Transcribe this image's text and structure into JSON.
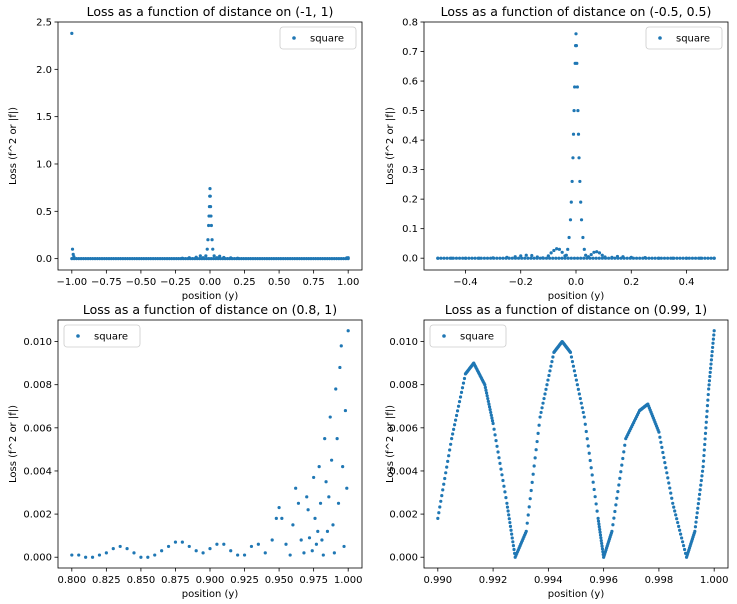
{
  "figure": {
    "background": "#ffffff"
  },
  "chart_data": [
    {
      "type": "scatter",
      "title": "Loss as a function of distance on (-1, 1)",
      "xlabel": "position (y)",
      "ylabel": "Loss (f^2 or |f|)",
      "xlim": [
        -1.1,
        1.1
      ],
      "ylim": [
        -0.12,
        2.5
      ],
      "xticks": [
        -1.0,
        -0.75,
        -0.5,
        -0.25,
        0.0,
        0.25,
        0.5,
        0.75,
        1.0
      ],
      "xtick_labels": [
        "−1.00",
        "−0.75",
        "−0.50",
        "−0.25",
        "0.00",
        "0.25",
        "0.50",
        "0.75",
        "1.00"
      ],
      "yticks": [
        0.0,
        0.5,
        1.0,
        1.5,
        2.0,
        2.5
      ],
      "ytick_labels": [
        "0.0",
        "0.5",
        "1.0",
        "1.5",
        "2.0",
        "2.5"
      ],
      "legend": {
        "position": "upper right",
        "entries": [
          "square"
        ]
      },
      "series": [
        {
          "name": "square",
          "color": "#1f77b4",
          "points": [
            [
              -1.0,
              2.38
            ],
            [
              -0.995,
              0.1
            ],
            [
              -0.99,
              0.045
            ],
            [
              -0.985,
              0.02
            ],
            [
              -0.2,
              0.005
            ],
            [
              -0.15,
              0.01
            ],
            [
              -0.1,
              0.015
            ],
            [
              -0.07,
              0.03
            ],
            [
              -0.05,
              0.01
            ],
            [
              -0.03,
              0.03
            ],
            [
              -0.02,
              0.1
            ],
            [
              -0.015,
              0.2
            ],
            [
              -0.01,
              0.35
            ],
            [
              -0.007,
              0.45
            ],
            [
              -0.004,
              0.55
            ],
            [
              -0.002,
              0.66
            ],
            [
              0.0,
              0.74
            ],
            [
              0.002,
              0.66
            ],
            [
              0.004,
              0.55
            ],
            [
              0.007,
              0.45
            ],
            [
              0.01,
              0.35
            ],
            [
              0.015,
              0.2
            ],
            [
              0.02,
              0.1
            ],
            [
              0.03,
              0.03
            ],
            [
              0.05,
              0.01
            ],
            [
              0.07,
              0.025
            ],
            [
              0.1,
              0.012
            ],
            [
              0.15,
              0.008
            ],
            [
              0.2,
              0.005
            ],
            [
              0.99,
              0.008
            ],
            [
              1.0,
              0.01
            ]
          ]
        }
      ],
      "baseline_series": {
        "from": -1.0,
        "to": 1.0,
        "count": 120,
        "value": 0.0
      }
    },
    {
      "type": "scatter",
      "title": "Loss as a function of distance on (-0.5, 0.5)",
      "xlabel": "position (y)",
      "ylabel": "Loss (f^2 or |f|)",
      "xlim": [
        -0.55,
        0.55
      ],
      "ylim": [
        -0.04,
        0.8
      ],
      "xticks": [
        -0.4,
        -0.2,
        0.0,
        0.2,
        0.4
      ],
      "xtick_labels": [
        "−0.4",
        "−0.2",
        "0.0",
        "0.2",
        "0.4"
      ],
      "yticks": [
        0.0,
        0.1,
        0.2,
        0.3,
        0.4,
        0.5,
        0.6,
        0.7,
        0.8
      ],
      "ytick_labels": [
        "0.0",
        "0.1",
        "0.2",
        "0.3",
        "0.4",
        "0.5",
        "0.6",
        "0.7",
        "0.8"
      ],
      "legend": {
        "position": "upper right",
        "entries": [
          "square"
        ]
      },
      "series": [
        {
          "name": "square",
          "color": "#1f77b4",
          "points": [
            [
              -0.5,
              0.0
            ],
            [
              -0.45,
              0.0
            ],
            [
              -0.4,
              0.0
            ],
            [
              -0.35,
              0.0
            ],
            [
              -0.3,
              0.001
            ],
            [
              -0.25,
              0.003
            ],
            [
              -0.22,
              0.005
            ],
            [
              -0.2,
              0.008
            ],
            [
              -0.18,
              0.01
            ],
            [
              -0.16,
              0.009
            ],
            [
              -0.14,
              0.004
            ],
            [
              -0.12,
              0.001
            ],
            [
              -0.1,
              0.008
            ],
            [
              -0.09,
              0.018
            ],
            [
              -0.08,
              0.026
            ],
            [
              -0.07,
              0.032
            ],
            [
              -0.06,
              0.03
            ],
            [
              -0.05,
              0.02
            ],
            [
              -0.04,
              0.008
            ],
            [
              -0.035,
              0.01
            ],
            [
              -0.03,
              0.03
            ],
            [
              -0.025,
              0.07
            ],
            [
              -0.02,
              0.13
            ],
            [
              -0.017,
              0.19
            ],
            [
              -0.014,
              0.26
            ],
            [
              -0.011,
              0.34
            ],
            [
              -0.009,
              0.42
            ],
            [
              -0.007,
              0.5
            ],
            [
              -0.005,
              0.58
            ],
            [
              -0.003,
              0.66
            ],
            [
              -0.0015,
              0.72
            ],
            [
              0.0,
              0.76
            ],
            [
              0.0015,
              0.72
            ],
            [
              0.003,
              0.66
            ],
            [
              0.005,
              0.58
            ],
            [
              0.007,
              0.5
            ],
            [
              0.009,
              0.42
            ],
            [
              0.011,
              0.34
            ],
            [
              0.014,
              0.26
            ],
            [
              0.017,
              0.19
            ],
            [
              0.02,
              0.13
            ],
            [
              0.025,
              0.07
            ],
            [
              0.03,
              0.03
            ],
            [
              0.035,
              0.01
            ],
            [
              0.045,
              0.005
            ],
            [
              0.055,
              0.012
            ],
            [
              0.065,
              0.02
            ],
            [
              0.075,
              0.022
            ],
            [
              0.085,
              0.018
            ],
            [
              0.095,
              0.01
            ],
            [
              0.105,
              0.004
            ],
            [
              0.13,
              0.003
            ],
            [
              0.15,
              0.006
            ],
            [
              0.17,
              0.005
            ],
            [
              0.2,
              0.003
            ],
            [
              0.25,
              0.002
            ],
            [
              0.3,
              0.0
            ],
            [
              0.35,
              0.0
            ],
            [
              0.4,
              0.0
            ],
            [
              0.45,
              0.0
            ],
            [
              0.5,
              0.0
            ]
          ]
        }
      ],
      "baseline_series": {
        "from": -0.5,
        "to": 0.5,
        "count": 90,
        "value": 0.0
      }
    },
    {
      "type": "scatter",
      "title": "Loss as a function of distance on (0.8, 1)",
      "xlabel": "position (y)",
      "ylabel": "Loss (f^2 or |f|)",
      "xlim": [
        0.79,
        1.01
      ],
      "ylim": [
        -0.0005,
        0.011
      ],
      "xticks": [
        0.8,
        0.825,
        0.85,
        0.875,
        0.9,
        0.925,
        0.95,
        0.975,
        1.0
      ],
      "xtick_labels": [
        "0.800",
        "0.825",
        "0.850",
        "0.875",
        "0.900",
        "0.925",
        "0.950",
        "0.975",
        "1.000"
      ],
      "yticks": [
        0.0,
        0.002,
        0.004,
        0.006,
        0.008,
        0.01
      ],
      "ytick_labels": [
        "0.000",
        "0.002",
        "0.004",
        "0.006",
        "0.008",
        "0.010"
      ],
      "legend": {
        "position": "upper left",
        "entries": [
          "square"
        ]
      },
      "series": [
        {
          "name": "square",
          "color": "#1f77b4",
          "points": [
            [
              0.8,
              0.0001
            ],
            [
              0.805,
              0.0001
            ],
            [
              0.81,
              0.0
            ],
            [
              0.815,
              0.0
            ],
            [
              0.82,
              0.0001
            ],
            [
              0.825,
              0.0002
            ],
            [
              0.83,
              0.0004
            ],
            [
              0.835,
              0.0005
            ],
            [
              0.84,
              0.0004
            ],
            [
              0.845,
              0.0002
            ],
            [
              0.85,
              0.0
            ],
            [
              0.855,
              0.0
            ],
            [
              0.86,
              0.0001
            ],
            [
              0.865,
              0.0003
            ],
            [
              0.87,
              0.0005
            ],
            [
              0.875,
              0.0007
            ],
            [
              0.88,
              0.0007
            ],
            [
              0.885,
              0.0005
            ],
            [
              0.89,
              0.0003
            ],
            [
              0.895,
              0.0002
            ],
            [
              0.9,
              0.0004
            ],
            [
              0.905,
              0.0006
            ],
            [
              0.91,
              0.0006
            ],
            [
              0.915,
              0.0003
            ],
            [
              0.92,
              0.0001
            ],
            [
              0.925,
              0.0001
            ],
            [
              0.93,
              0.0005
            ],
            [
              0.935,
              0.0006
            ],
            [
              0.94,
              0.0002
            ],
            [
              0.945,
              0.0008
            ],
            [
              0.948,
              0.0018
            ],
            [
              0.95,
              0.0023
            ],
            [
              0.952,
              0.0018
            ],
            [
              0.955,
              0.0006
            ],
            [
              0.958,
              0.0001
            ],
            [
              0.96,
              0.0015
            ],
            [
              0.962,
              0.0032
            ],
            [
              0.964,
              0.0025
            ],
            [
              0.966,
              0.0008
            ],
            [
              0.968,
              0.0002
            ],
            [
              0.97,
              0.0028
            ],
            [
              0.971,
              0.0022
            ],
            [
              0.972,
              0.0009
            ],
            [
              0.974,
              0.0003
            ],
            [
              0.975,
              0.0037
            ],
            [
              0.976,
              0.0018
            ],
            [
              0.977,
              0.0006
            ],
            [
              0.978,
              0.0012
            ],
            [
              0.979,
              0.0042
            ],
            [
              0.98,
              0.0025
            ],
            [
              0.981,
              0.0008
            ],
            [
              0.982,
              0.0001
            ],
            [
              0.983,
              0.0055
            ],
            [
              0.984,
              0.0035
            ],
            [
              0.985,
              0.0012
            ],
            [
              0.986,
              0.0028
            ],
            [
              0.987,
              0.0065
            ],
            [
              0.988,
              0.0045
            ],
            [
              0.989,
              0.0015
            ],
            [
              0.99,
              0.0002
            ],
            [
              0.991,
              0.0078
            ],
            [
              0.992,
              0.0055
            ],
            [
              0.993,
              0.0025
            ],
            [
              0.994,
              0.0088
            ],
            [
              0.995,
              0.0098
            ],
            [
              0.996,
              0.0042
            ],
            [
              0.997,
              0.0005
            ],
            [
              0.998,
              0.0068
            ],
            [
              0.999,
              0.0032
            ],
            [
              1.0,
              0.0105
            ]
          ]
        }
      ]
    },
    {
      "type": "scatter",
      "title": "Loss as a function of distance on (0.99, 1)",
      "xlabel": "position (y)",
      "ylabel": "Loss (f^2 or |f|)",
      "xlim": [
        0.9895,
        1.0005
      ],
      "ylim": [
        -0.0005,
        0.011
      ],
      "xticks": [
        0.99,
        0.992,
        0.994,
        0.996,
        0.998,
        1.0
      ],
      "xtick_labels": [
        "0.990",
        "0.992",
        "0.994",
        "0.996",
        "0.998",
        "1.000"
      ],
      "yticks": [
        0.0,
        0.002,
        0.004,
        0.006,
        0.008,
        0.01
      ],
      "ytick_labels": [
        "0.000",
        "0.002",
        "0.004",
        "0.006",
        "0.008",
        "0.010"
      ],
      "legend": {
        "position": "upper left",
        "entries": [
          "square"
        ]
      },
      "series": [
        {
          "name": "square",
          "color": "#1f77b4",
          "points": [
            [
              0.99,
              0.0018
            ],
            [
              0.9905,
              0.0055
            ],
            [
              0.991,
              0.0085
            ],
            [
              0.9913,
              0.009
            ],
            [
              0.9917,
              0.008
            ],
            [
              0.992,
              0.0062
            ],
            [
              0.9925,
              0.0025
            ],
            [
              0.9928,
              0.0
            ],
            [
              0.9932,
              0.0012
            ],
            [
              0.9937,
              0.0065
            ],
            [
              0.9942,
              0.0095
            ],
            [
              0.9945,
              0.01
            ],
            [
              0.9948,
              0.0095
            ],
            [
              0.9953,
              0.0065
            ],
            [
              0.9958,
              0.0018
            ],
            [
              0.996,
              0.0
            ],
            [
              0.9963,
              0.0012
            ],
            [
              0.9968,
              0.0055
            ],
            [
              0.9973,
              0.0068
            ],
            [
              0.9976,
              0.0071
            ],
            [
              0.998,
              0.0058
            ],
            [
              0.9985,
              0.0025
            ],
            [
              0.999,
              0.0
            ],
            [
              0.9993,
              0.0012
            ],
            [
              0.9996,
              0.0042
            ],
            [
              0.9998,
              0.0078
            ],
            [
              1.0,
              0.0105
            ]
          ]
        }
      ]
    }
  ]
}
